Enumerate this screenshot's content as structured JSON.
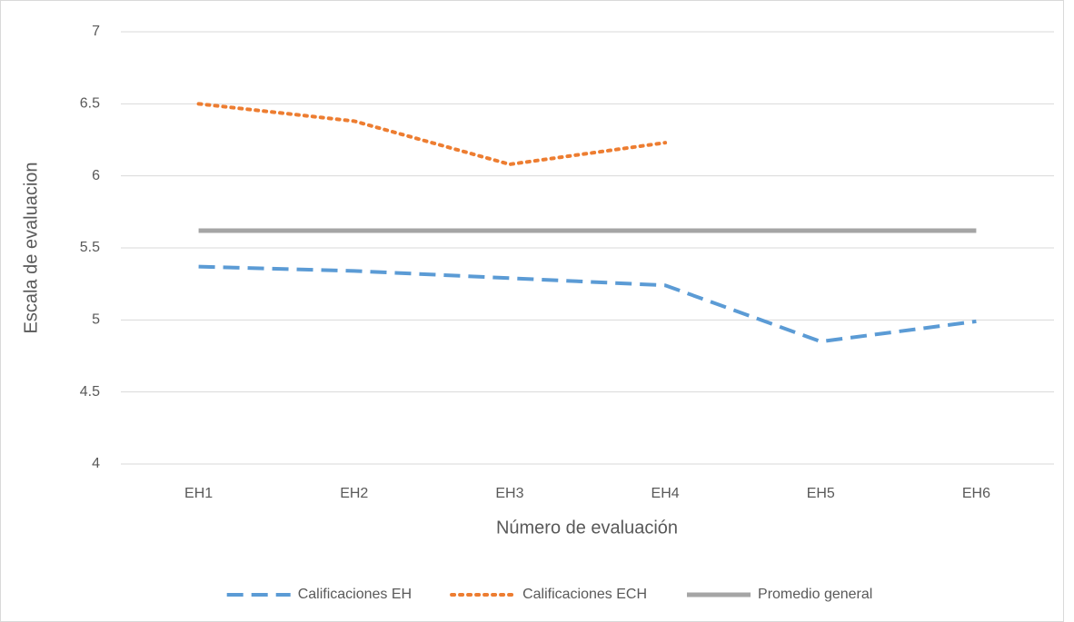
{
  "chart_data": {
    "type": "line",
    "x_label": "Número de evaluación",
    "y_label": "Escala de evaluacion",
    "categories": [
      "EH1",
      "EH2",
      "EH3",
      "EH4",
      "EH5",
      "EH6"
    ],
    "series": [
      {
        "name": "Calificaciones EH",
        "color": "#5b9bd5",
        "style": "dash",
        "values": [
          5.37,
          5.34,
          5.29,
          5.24,
          4.85,
          4.99
        ]
      },
      {
        "name": "Calificaciones ECH",
        "color": "#ed7d31",
        "style": "dot",
        "values": [
          6.5,
          6.38,
          6.08,
          6.23,
          null,
          null
        ]
      },
      {
        "name": "Promedio general",
        "color": "#a5a5a5",
        "style": "solid",
        "values": [
          5.62,
          5.62,
          5.62,
          5.62,
          5.62,
          5.62
        ]
      }
    ],
    "ylim": [
      4,
      7
    ],
    "yticks": [
      4,
      4.5,
      5,
      5.5,
      6,
      6.5,
      7
    ],
    "grid": true,
    "legend": "bottom"
  }
}
